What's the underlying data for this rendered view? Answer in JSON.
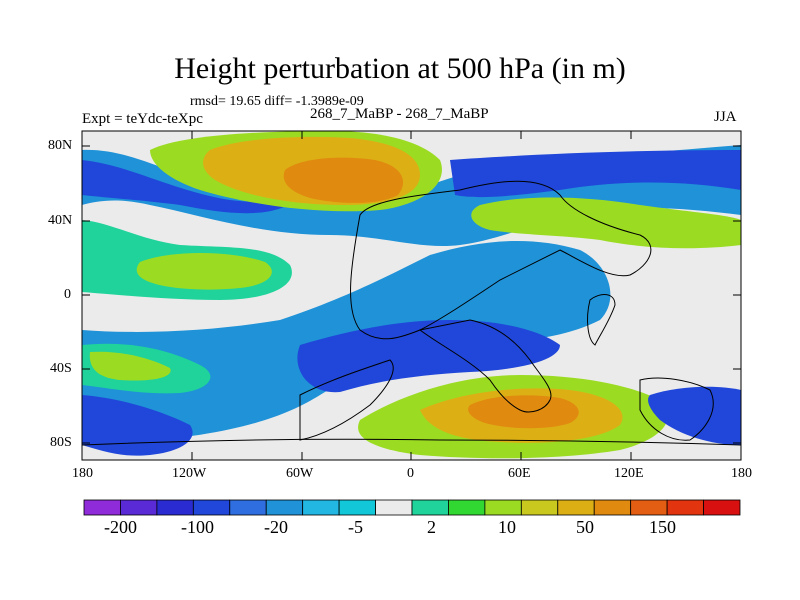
{
  "title": "Height perturbation at 500 hPa (in m)",
  "stats_line": "rmsd= 19.65 diff= -1.3989e-09",
  "left_label": "Expt = teYdc-teXpc",
  "center_label": "268_7_MaBP - 268_7_MaBP",
  "right_label": "JJA",
  "axes": {
    "lat_ticks": [
      "80N",
      "40N",
      "0",
      "40S",
      "80S"
    ],
    "lon_ticks": [
      "180",
      "120W",
      "60W",
      "0",
      "60E",
      "120E",
      "180"
    ]
  },
  "colorbar": {
    "colors": [
      "#8f2bd8",
      "#5a2ad6",
      "#2b2bd2",
      "#2047d9",
      "#2f6ee0",
      "#1f92d8",
      "#22b6e3",
      "#12c8d8",
      "#ebebeb",
      "#1fd39a",
      "#32d832",
      "#9bdc23",
      "#c9c81e",
      "#dcb014",
      "#e08a10",
      "#e35e12",
      "#e2340e",
      "#d81010"
    ],
    "tick_labels": [
      "-200",
      "-100",
      "-20",
      "-5",
      "2",
      "10",
      "50",
      "150"
    ]
  },
  "map_regions": [
    {
      "name": "neutral-background",
      "color": "#ebebeb"
    },
    {
      "name": "south-pacific-positive",
      "color": "#dcb014"
    },
    {
      "name": "north-pacific-positive",
      "color": "#e08a10"
    },
    {
      "name": "south-indian-positive",
      "color": "#e08a10"
    }
  ]
}
